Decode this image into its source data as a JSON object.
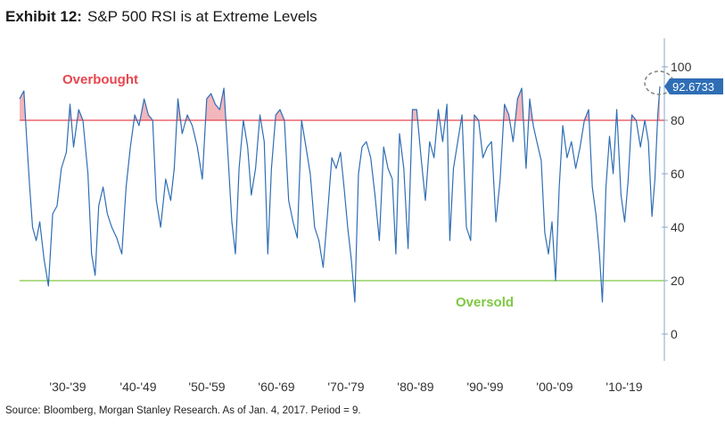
{
  "header": {
    "prefix": "Exhibit 12:",
    "title": "S&P 500 RSI is at Extreme Levels"
  },
  "footer": {
    "source": "Source: Bloomberg, Morgan Stanley Research. As of Jan. 4, 2017. Period = 9."
  },
  "chart_data": {
    "type": "line",
    "title": "S&P 500 RSI is at Extreme Levels",
    "y_axis": {
      "range": [
        -10,
        110
      ],
      "ticks": [
        0,
        20,
        40,
        60,
        80,
        100
      ],
      "side": "right"
    },
    "x_axis": {
      "tick_labels": [
        "'30-'39",
        "'40-'49",
        "'50-'59",
        "'60-'69",
        "'70-'79",
        "'80-'89",
        "'90-'99",
        "'00-'09",
        "'10-'19"
      ]
    },
    "grid": false,
    "legend": "none",
    "reference_lines": [
      {
        "label": "Overbought",
        "y": 80,
        "color": "#e8464e"
      },
      {
        "label": "Oversold",
        "y": 20,
        "color": "#7fc843"
      }
    ],
    "last_value_label": "92.6733",
    "last_value": 92.6733,
    "series": [
      {
        "color": "#2f6eb5",
        "x_start": 1928,
        "x_end": 2017,
        "anchors": [
          [
            1928.0,
            88
          ],
          [
            1928.6,
            91
          ],
          [
            1929.0,
            72
          ],
          [
            1929.4,
            55
          ],
          [
            1929.8,
            40
          ],
          [
            1930.3,
            35
          ],
          [
            1930.8,
            42
          ],
          [
            1931.4,
            28
          ],
          [
            1932.0,
            18
          ],
          [
            1932.6,
            45
          ],
          [
            1933.2,
            48
          ],
          [
            1933.8,
            62
          ],
          [
            1934.5,
            68
          ],
          [
            1935.0,
            86
          ],
          [
            1935.5,
            70
          ],
          [
            1936.2,
            84
          ],
          [
            1936.8,
            80
          ],
          [
            1937.5,
            60
          ],
          [
            1938.0,
            30
          ],
          [
            1938.5,
            22
          ],
          [
            1939.0,
            48
          ],
          [
            1939.6,
            55
          ],
          [
            1940.2,
            45
          ],
          [
            1940.8,
            40
          ],
          [
            1941.5,
            36
          ],
          [
            1942.2,
            30
          ],
          [
            1942.8,
            55
          ],
          [
            1943.4,
            70
          ],
          [
            1944.0,
            82
          ],
          [
            1944.6,
            78
          ],
          [
            1945.3,
            88
          ],
          [
            1945.9,
            82
          ],
          [
            1946.5,
            80
          ],
          [
            1947.0,
            50
          ],
          [
            1947.6,
            40
          ],
          [
            1948.3,
            58
          ],
          [
            1949.0,
            50
          ],
          [
            1949.5,
            62
          ],
          [
            1950.0,
            88
          ],
          [
            1950.6,
            75
          ],
          [
            1951.3,
            82
          ],
          [
            1952.0,
            78
          ],
          [
            1952.7,
            70
          ],
          [
            1953.4,
            58
          ],
          [
            1954.0,
            88
          ],
          [
            1954.6,
            90
          ],
          [
            1955.2,
            86
          ],
          [
            1955.8,
            84
          ],
          [
            1956.4,
            92
          ],
          [
            1956.9,
            70
          ],
          [
            1957.5,
            42
          ],
          [
            1958.0,
            30
          ],
          [
            1958.5,
            62
          ],
          [
            1959.1,
            80
          ],
          [
            1959.7,
            70
          ],
          [
            1960.2,
            52
          ],
          [
            1960.8,
            62
          ],
          [
            1961.4,
            82
          ],
          [
            1962.0,
            72
          ],
          [
            1962.5,
            30
          ],
          [
            1963.0,
            62
          ],
          [
            1963.6,
            82
          ],
          [
            1964.2,
            84
          ],
          [
            1964.8,
            80
          ],
          [
            1965.4,
            50
          ],
          [
            1966.0,
            42
          ],
          [
            1966.6,
            36
          ],
          [
            1967.2,
            80
          ],
          [
            1967.8,
            70
          ],
          [
            1968.4,
            60
          ],
          [
            1969.0,
            40
          ],
          [
            1969.6,
            35
          ],
          [
            1970.2,
            25
          ],
          [
            1970.8,
            45
          ],
          [
            1971.4,
            66
          ],
          [
            1972.0,
            62
          ],
          [
            1972.6,
            68
          ],
          [
            1973.1,
            55
          ],
          [
            1973.6,
            40
          ],
          [
            1974.1,
            28
          ],
          [
            1974.6,
            12
          ],
          [
            1975.1,
            60
          ],
          [
            1975.6,
            70
          ],
          [
            1976.2,
            72
          ],
          [
            1976.8,
            66
          ],
          [
            1977.4,
            52
          ],
          [
            1978.0,
            35
          ],
          [
            1978.6,
            70
          ],
          [
            1979.2,
            62
          ],
          [
            1979.8,
            58
          ],
          [
            1980.3,
            30
          ],
          [
            1980.8,
            75
          ],
          [
            1981.4,
            62
          ],
          [
            1982.0,
            32
          ],
          [
            1982.6,
            84
          ],
          [
            1983.2,
            84
          ],
          [
            1983.8,
            66
          ],
          [
            1984.4,
            50
          ],
          [
            1985.0,
            72
          ],
          [
            1985.6,
            66
          ],
          [
            1986.2,
            84
          ],
          [
            1986.8,
            72
          ],
          [
            1987.4,
            86
          ],
          [
            1987.8,
            35
          ],
          [
            1988.3,
            62
          ],
          [
            1988.9,
            72
          ],
          [
            1989.5,
            82
          ],
          [
            1990.1,
            40
          ],
          [
            1990.7,
            35
          ],
          [
            1991.2,
            82
          ],
          [
            1991.8,
            80
          ],
          [
            1992.4,
            66
          ],
          [
            1993.0,
            70
          ],
          [
            1993.6,
            72
          ],
          [
            1994.2,
            42
          ],
          [
            1994.8,
            58
          ],
          [
            1995.4,
            86
          ],
          [
            1996.0,
            82
          ],
          [
            1996.6,
            72
          ],
          [
            1997.2,
            88
          ],
          [
            1997.8,
            92
          ],
          [
            1998.4,
            62
          ],
          [
            1998.9,
            88
          ],
          [
            1999.4,
            78
          ],
          [
            1999.9,
            72
          ],
          [
            2000.5,
            65
          ],
          [
            2001.0,
            38
          ],
          [
            2001.5,
            30
          ],
          [
            2002.0,
            42
          ],
          [
            2002.5,
            20
          ],
          [
            2003.0,
            55
          ],
          [
            2003.5,
            78
          ],
          [
            2004.1,
            66
          ],
          [
            2004.7,
            72
          ],
          [
            2005.3,
            62
          ],
          [
            2005.9,
            70
          ],
          [
            2006.5,
            80
          ],
          [
            2007.1,
            84
          ],
          [
            2007.6,
            55
          ],
          [
            2008.1,
            45
          ],
          [
            2008.6,
            30
          ],
          [
            2009.0,
            12
          ],
          [
            2009.5,
            55
          ],
          [
            2010.0,
            74
          ],
          [
            2010.5,
            60
          ],
          [
            2011.0,
            84
          ],
          [
            2011.6,
            52
          ],
          [
            2012.1,
            42
          ],
          [
            2012.6,
            58
          ],
          [
            2013.1,
            82
          ],
          [
            2013.7,
            80
          ],
          [
            2014.3,
            70
          ],
          [
            2014.9,
            80
          ],
          [
            2015.4,
            72
          ],
          [
            2015.9,
            44
          ],
          [
            2016.3,
            58
          ],
          [
            2016.7,
            82
          ],
          [
            2017.0,
            92.6733
          ]
        ]
      }
    ]
  }
}
